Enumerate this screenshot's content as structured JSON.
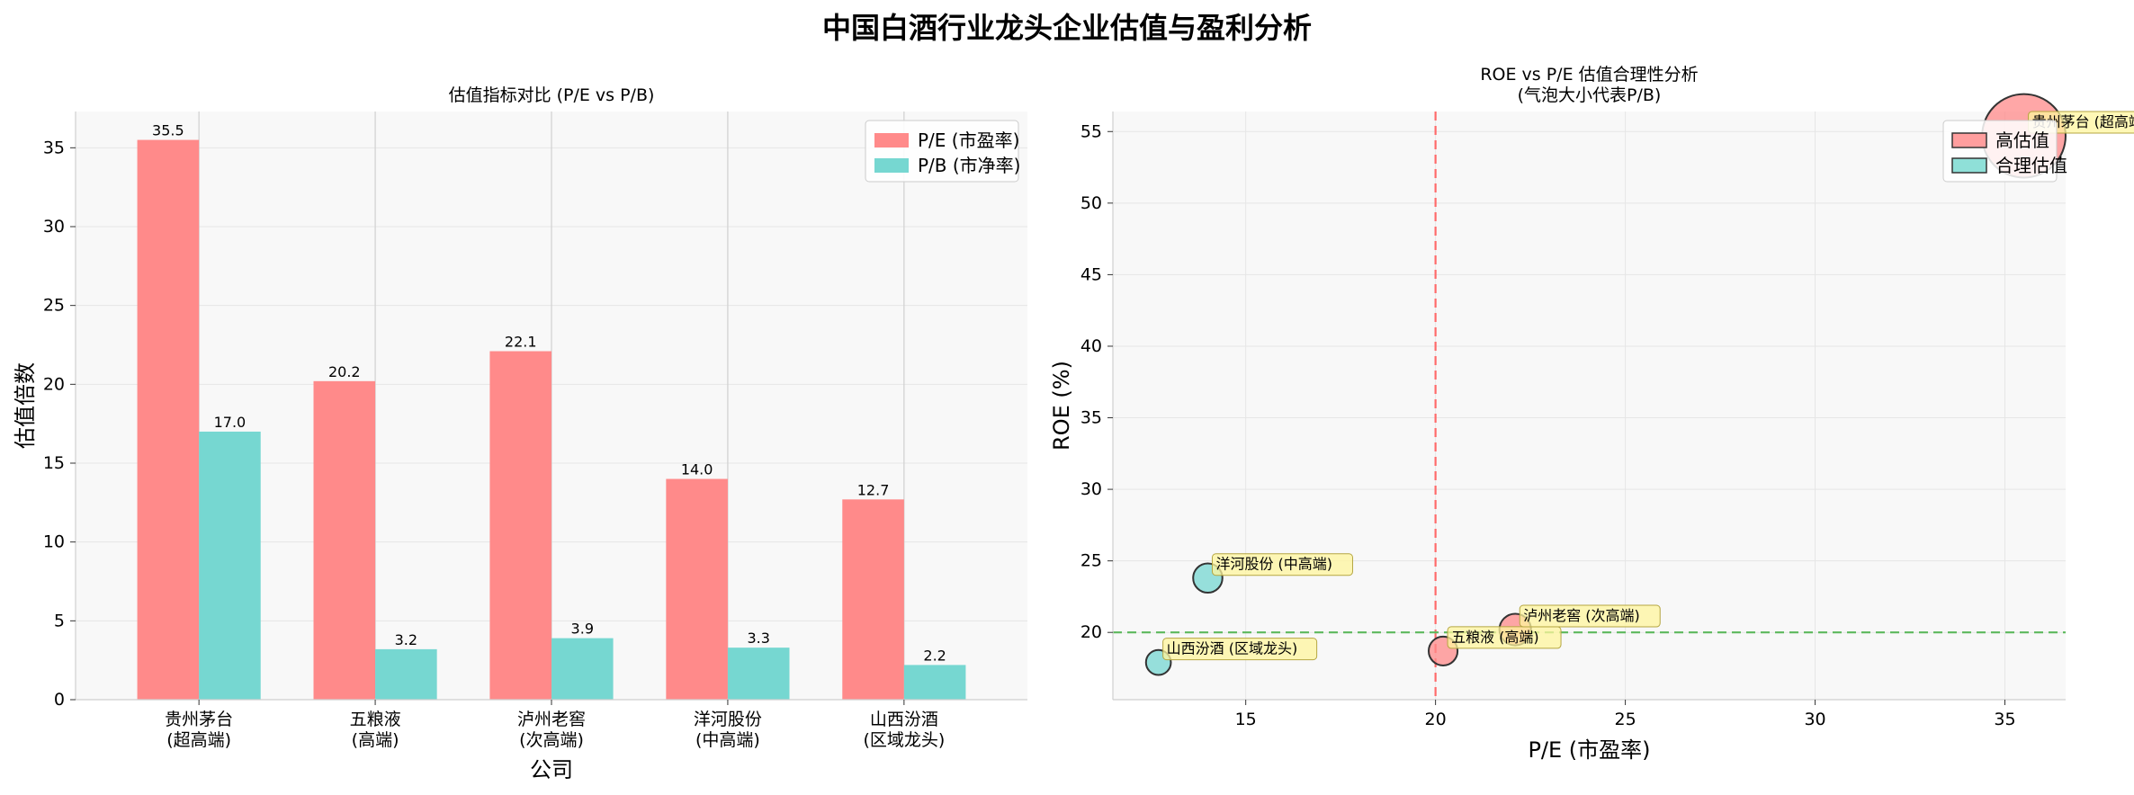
{
  "figure": {
    "title": "中国白酒行业龙头企业估值与盈利分析"
  },
  "chart_data": [
    {
      "type": "bar",
      "title": "估值指标对比 (P/E vs P/B)",
      "xlabel": "公司",
      "ylabel": "估值倍数",
      "ylim": [
        0,
        37.3
      ],
      "yticks": [
        0,
        5,
        10,
        15,
        20,
        25,
        30,
        35
      ],
      "categories": [
        [
          "贵州茅台",
          "(超高端)"
        ],
        [
          "五粮液",
          "(高端)"
        ],
        [
          "泸州老窖",
          "(次高端)"
        ],
        [
          "洋河股份",
          "(中高端)"
        ],
        [
          "山西汾酒",
          "(区域龙头)"
        ]
      ],
      "series": [
        {
          "name": "P/E (市盈率)",
          "color": "#ff8a8a",
          "values": [
            35.5,
            20.2,
            22.1,
            14.0,
            12.7
          ]
        },
        {
          "name": "P/B (市净率)",
          "color": "#76d7d1",
          "values": [
            17.0,
            3.2,
            3.9,
            3.3,
            2.2
          ]
        }
      ],
      "legend": "top-right"
    },
    {
      "type": "scatter",
      "title_lines": [
        "ROE vs P/E 估值合理性分析",
        "(气泡大小代表P/B)"
      ],
      "xlabel": "P/E (市盈率)",
      "ylabel": "ROE (%)",
      "xlim": [
        11.5,
        36.6
      ],
      "ylim": [
        15.3,
        56.4
      ],
      "xticks": [
        15,
        20,
        25,
        30,
        35
      ],
      "yticks": [
        20,
        25,
        30,
        35,
        40,
        45,
        50,
        55
      ],
      "ref_lines": [
        {
          "axis": "x",
          "value": 20,
          "color": "#ff6b6b"
        },
        {
          "axis": "y",
          "value": 20,
          "color": "#5cb85c"
        }
      ],
      "points": [
        {
          "label": "贵州茅台 (超高端)",
          "pe": 35.5,
          "roe": 54.7,
          "pb": 17.0,
          "group": "高估值",
          "color": "#ff8a8a"
        },
        {
          "label": "五粮液 (高端)",
          "pe": 20.2,
          "roe": 18.7,
          "pb": 3.2,
          "group": "高估值",
          "color": "#ff8a8a"
        },
        {
          "label": "泸州老窖 (次高端)",
          "pe": 22.1,
          "roe": 20.2,
          "pb": 3.9,
          "group": "高估值",
          "color": "#ff8a8a"
        },
        {
          "label": "洋河股份 (中高端)",
          "pe": 14.0,
          "roe": 23.8,
          "pb": 3.3,
          "group": "合理估值",
          "color": "#76d7d1"
        },
        {
          "label": "山西汾酒 (区域龙头)",
          "pe": 12.7,
          "roe": 17.9,
          "pb": 2.2,
          "group": "合理估值",
          "color": "#76d7d1"
        }
      ],
      "legend_items": [
        {
          "name": "高估值",
          "color": "#ff9e9e"
        },
        {
          "name": "合理估值",
          "color": "#8fe0d8"
        }
      ],
      "legend": "top-right"
    }
  ]
}
